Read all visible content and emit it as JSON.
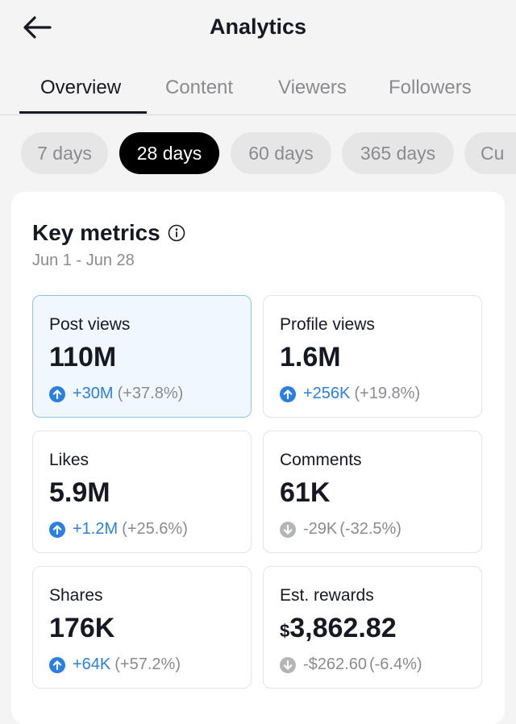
{
  "header": {
    "title": "Analytics",
    "back_icon": "arrow-left-icon"
  },
  "tabs": [
    {
      "label": "Overview",
      "active": true
    },
    {
      "label": "Content",
      "active": false
    },
    {
      "label": "Viewers",
      "active": false
    },
    {
      "label": "Followers",
      "active": false
    }
  ],
  "ranges": [
    {
      "label": "7 days",
      "active": false
    },
    {
      "label": "28 days",
      "active": true
    },
    {
      "label": "60 days",
      "active": false
    },
    {
      "label": "365 days",
      "active": false
    },
    {
      "label": "Cu",
      "active": false
    }
  ],
  "key_metrics": {
    "title": "Key metrics",
    "date_range": "Jun 1 - Jun 28",
    "items": [
      {
        "label": "Post views",
        "value": "110M",
        "change": "+30M",
        "pct": "(+37.8%)",
        "trend": "up",
        "selected": true
      },
      {
        "label": "Profile views",
        "value": "1.6M",
        "change": "+256K",
        "pct": "(+19.8%)",
        "trend": "up",
        "selected": false
      },
      {
        "label": "Likes",
        "value": "5.9M",
        "change": "+1.2M",
        "pct": "(+25.6%)",
        "trend": "up",
        "selected": false
      },
      {
        "label": "Comments",
        "value": "61K",
        "change": "-29K",
        "pct": "(-32.5%)",
        "trend": "down",
        "selected": false
      },
      {
        "label": "Shares",
        "value": "176K",
        "change": "+64K",
        "pct": "(+57.2%)",
        "trend": "up",
        "selected": false
      },
      {
        "label": "Est. rewards",
        "currency": "$",
        "value": "3,862.82",
        "change": "-$262.60",
        "pct": "(-6.4%)",
        "trend": "down",
        "selected": false
      }
    ]
  },
  "colors": {
    "up": "#2b7fe0",
    "down": "#8a8b91",
    "selected_bg": "#f1f8fd",
    "selected_border": "#8fc3de"
  }
}
